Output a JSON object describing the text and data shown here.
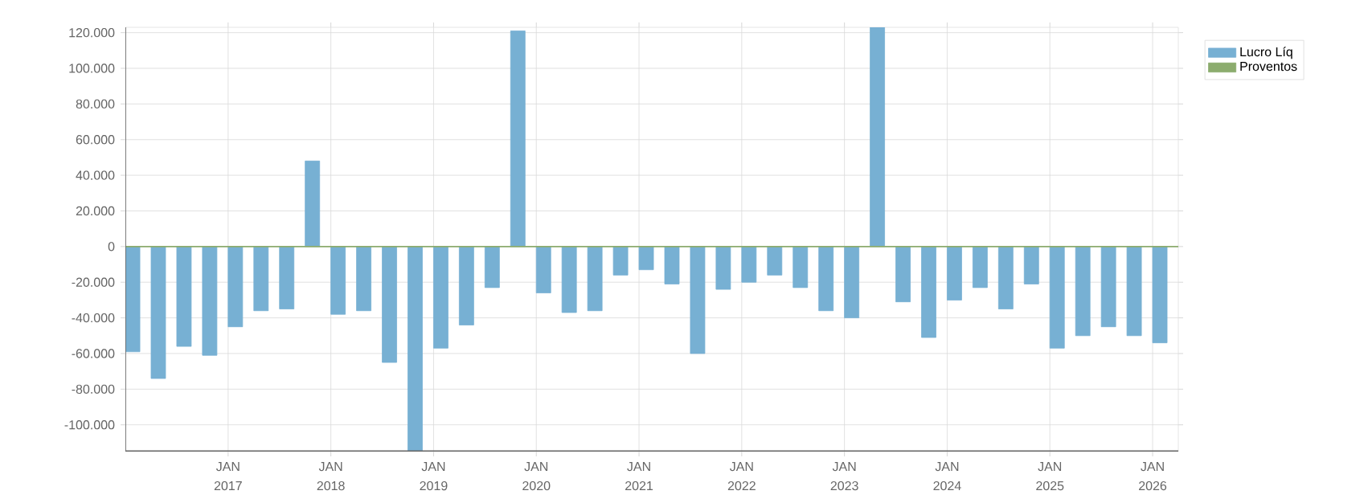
{
  "chart_data": {
    "type": "bar",
    "x": [
      "2016-01",
      "2016-04",
      "2016-07",
      "2016-10",
      "2017-01",
      "2017-04",
      "2017-07",
      "2017-10",
      "2018-01",
      "2018-04",
      "2018-07",
      "2018-10",
      "2019-01",
      "2019-04",
      "2019-07",
      "2019-10",
      "2020-01",
      "2020-04",
      "2020-07",
      "2020-10",
      "2021-01",
      "2021-04",
      "2021-07",
      "2021-10",
      "2022-01",
      "2022-04",
      "2022-07",
      "2022-10",
      "2023-01",
      "2023-04",
      "2023-07",
      "2023-10",
      "2024-01",
      "2024-04",
      "2024-07",
      "2024-10",
      "2025-01",
      "2025-04",
      "2025-07",
      "2025-10",
      "2026-01"
    ],
    "series": [
      {
        "name": "Lucro Líq",
        "color": "#77b0d3",
        "values": [
          -59000,
          -74000,
          -56000,
          -61000,
          -45000,
          -36000,
          -35000,
          48000,
          -38000,
          -36000,
          -65000,
          -115000,
          -57000,
          -44000,
          -23000,
          121000,
          -26000,
          -37000,
          -36000,
          -16000,
          -13000,
          -21000,
          -60000,
          -24000,
          -20000,
          -16000,
          -23000,
          -36000,
          -40000,
          123000,
          -31000,
          -51000,
          -30000,
          -23000,
          -35000,
          -21000,
          -57000,
          -50000,
          -45000,
          -50000,
          -54000
        ]
      },
      {
        "name": "Proventos",
        "color": "#8cac6e",
        "values": [
          null,
          null,
          null,
          null,
          null,
          null,
          null,
          null,
          null,
          null,
          null,
          null,
          null,
          null,
          null,
          null,
          null,
          null,
          null,
          null,
          null,
          null,
          null,
          null,
          null,
          null,
          null,
          null,
          null,
          null,
          null,
          null,
          null,
          null,
          null,
          null,
          null,
          null,
          null,
          null,
          null
        ]
      }
    ],
    "ref_lines": [
      {
        "axis": "y",
        "value": 0,
        "color": "#8cac6e"
      }
    ],
    "xlim": [
      "2016-01",
      "2026-04"
    ],
    "ylim": [
      -115000,
      123000
    ],
    "xticks": [
      {
        "value": "2017-01",
        "label": "JAN 2017"
      },
      {
        "value": "2018-01",
        "label": "JAN 2018"
      },
      {
        "value": "2019-01",
        "label": "JAN 2019"
      },
      {
        "value": "2020-01",
        "label": "JAN 2020"
      },
      {
        "value": "2021-01",
        "label": "JAN 2021"
      },
      {
        "value": "2022-01",
        "label": "JAN 2022"
      },
      {
        "value": "2023-01",
        "label": "JAN 2023"
      },
      {
        "value": "2024-01",
        "label": "JAN 2024"
      },
      {
        "value": "2025-01",
        "label": "JAN 2025"
      },
      {
        "value": "2026-01",
        "label": "JAN 2026"
      }
    ],
    "yticks": [
      {
        "value": -100000,
        "label": "-100.000"
      },
      {
        "value": -80000,
        "label": "-80.000"
      },
      {
        "value": -60000,
        "label": "-60.000"
      },
      {
        "value": -40000,
        "label": "-40.000"
      },
      {
        "value": -20000,
        "label": "-20.000"
      },
      {
        "value": 0,
        "label": "0"
      },
      {
        "value": 20000,
        "label": "20.000"
      },
      {
        "value": 40000,
        "label": "40.000"
      },
      {
        "value": 60000,
        "label": "60.000"
      },
      {
        "value": 80000,
        "label": "80.000"
      },
      {
        "value": 100000,
        "label": "100.000"
      },
      {
        "value": 120000,
        "label": "120.000"
      }
    ],
    "grid": true,
    "legend": "top right"
  }
}
